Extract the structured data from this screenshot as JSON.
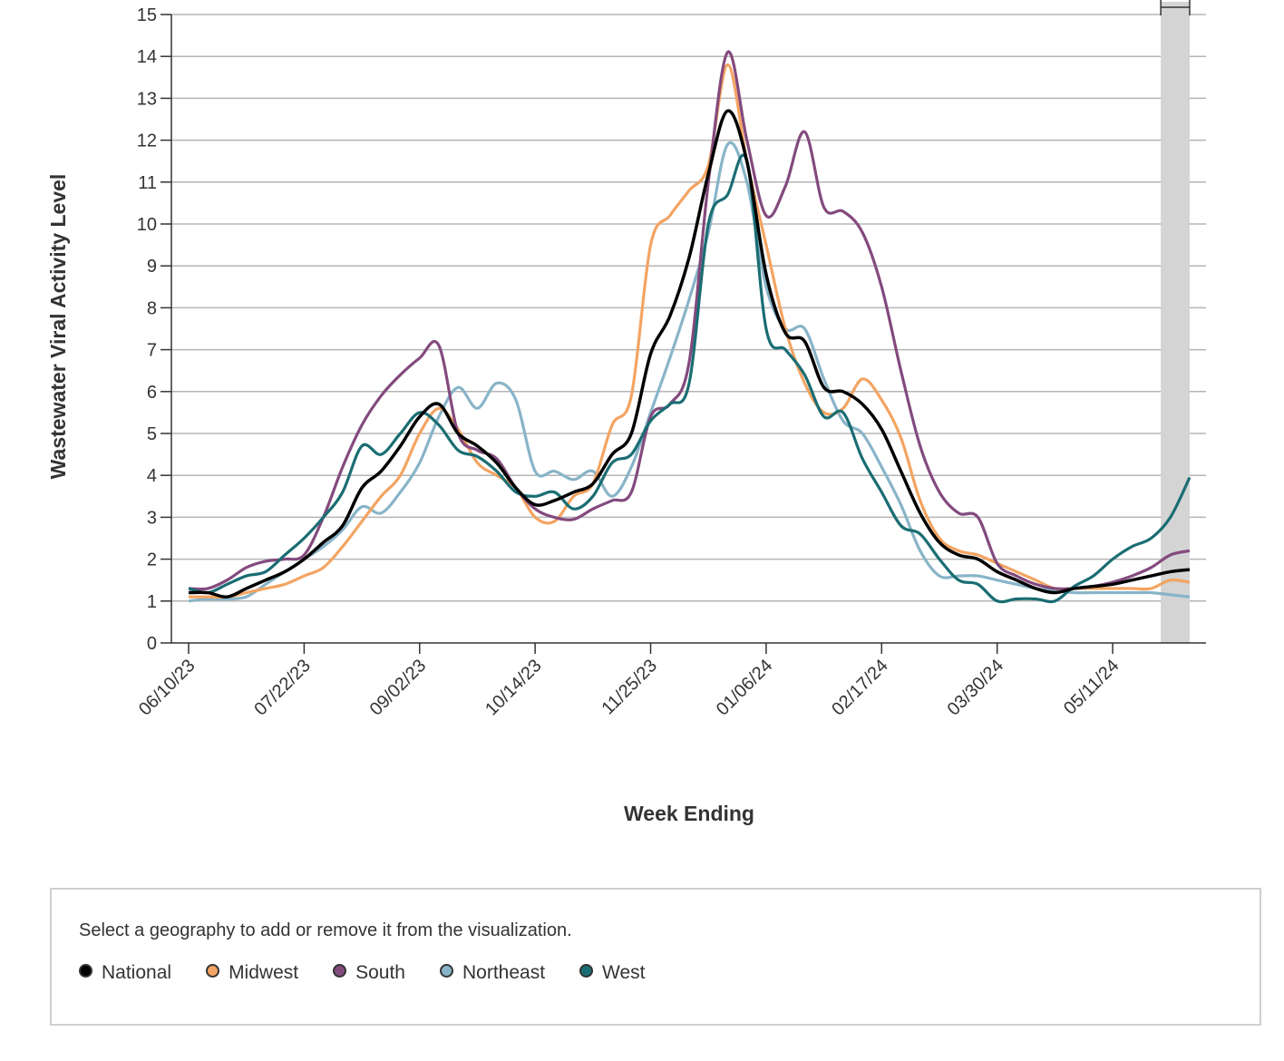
{
  "chart_data": {
    "type": "line",
    "ylabel": "Wastewater Viral Activity Level",
    "xlabel": "Week Ending",
    "ylim": [
      0,
      15
    ],
    "yticks": [
      0,
      1,
      2,
      3,
      4,
      5,
      6,
      7,
      8,
      9,
      10,
      11,
      12,
      13,
      14,
      15
    ],
    "xticks": [
      "06/10/23",
      "07/22/23",
      "09/02/23",
      "10/14/23",
      "11/25/23",
      "01/06/24",
      "02/17/24",
      "03/30/24",
      "05/11/24"
    ],
    "x_range_weeks": [
      0,
      52
    ],
    "shaded_region_weeks": [
      50.5,
      52
    ],
    "series": [
      {
        "name": "National",
        "color": "#000000",
        "points": [
          [
            0,
            1.2
          ],
          [
            1,
            1.2
          ],
          [
            2,
            1.1
          ],
          [
            3,
            1.3
          ],
          [
            4,
            1.5
          ],
          [
            5,
            1.7
          ],
          [
            6,
            2.0
          ],
          [
            7,
            2.4
          ],
          [
            8,
            2.8
          ],
          [
            9,
            3.7
          ],
          [
            10,
            4.1
          ],
          [
            11,
            4.7
          ],
          [
            12,
            5.4
          ],
          [
            13,
            5.7
          ],
          [
            14,
            5.0
          ],
          [
            15,
            4.7
          ],
          [
            16,
            4.3
          ],
          [
            17,
            3.7
          ],
          [
            18,
            3.3
          ],
          [
            19,
            3.4
          ],
          [
            20,
            3.6
          ],
          [
            21,
            3.8
          ],
          [
            22,
            4.5
          ],
          [
            23,
            5.0
          ],
          [
            24,
            6.9
          ],
          [
            25,
            7.8
          ],
          [
            26,
            9.2
          ],
          [
            27,
            11.2
          ],
          [
            28,
            12.7
          ],
          [
            29,
            11.5
          ],
          [
            30,
            8.8
          ],
          [
            31,
            7.4
          ],
          [
            32,
            7.2
          ],
          [
            33,
            6.1
          ],
          [
            34,
            6.0
          ],
          [
            35,
            5.7
          ],
          [
            36,
            5.1
          ],
          [
            37,
            4.1
          ],
          [
            38,
            3.1
          ],
          [
            39,
            2.4
          ],
          [
            40,
            2.1
          ],
          [
            41,
            2.0
          ],
          [
            42,
            1.7
          ],
          [
            43,
            1.5
          ],
          [
            44,
            1.3
          ],
          [
            45,
            1.2
          ],
          [
            46,
            1.3
          ],
          [
            47,
            1.35
          ],
          [
            48,
            1.4
          ],
          [
            49,
            1.5
          ],
          [
            50,
            1.6
          ],
          [
            51,
            1.7
          ],
          [
            52,
            1.75
          ]
        ]
      },
      {
        "name": "Midwest",
        "color": "#f3a462",
        "points": [
          [
            0,
            1.1
          ],
          [
            1,
            1.1
          ],
          [
            2,
            1.1
          ],
          [
            3,
            1.2
          ],
          [
            4,
            1.3
          ],
          [
            5,
            1.4
          ],
          [
            6,
            1.6
          ],
          [
            7,
            1.8
          ],
          [
            8,
            2.3
          ],
          [
            9,
            2.9
          ],
          [
            10,
            3.5
          ],
          [
            11,
            4.0
          ],
          [
            12,
            5.0
          ],
          [
            13,
            5.6
          ],
          [
            14,
            5.1
          ],
          [
            15,
            4.3
          ],
          [
            16,
            4.0
          ],
          [
            17,
            3.7
          ],
          [
            18,
            3.0
          ],
          [
            19,
            2.9
          ],
          [
            20,
            3.5
          ],
          [
            21,
            3.8
          ],
          [
            22,
            5.2
          ],
          [
            23,
            5.9
          ],
          [
            24,
            9.5
          ],
          [
            25,
            10.2
          ],
          [
            26,
            10.8
          ],
          [
            27,
            11.4
          ],
          [
            28,
            13.8
          ],
          [
            29,
            11.5
          ],
          [
            30,
            9.5
          ],
          [
            31,
            7.5
          ],
          [
            32,
            6.2
          ],
          [
            33,
            5.5
          ],
          [
            34,
            5.6
          ],
          [
            35,
            6.3
          ],
          [
            36,
            5.8
          ],
          [
            37,
            4.9
          ],
          [
            38,
            3.4
          ],
          [
            39,
            2.5
          ],
          [
            40,
            2.2
          ],
          [
            41,
            2.1
          ],
          [
            42,
            1.9
          ],
          [
            43,
            1.7
          ],
          [
            44,
            1.5
          ],
          [
            45,
            1.3
          ],
          [
            46,
            1.3
          ],
          [
            47,
            1.3
          ],
          [
            48,
            1.3
          ],
          [
            49,
            1.3
          ],
          [
            50,
            1.3
          ],
          [
            51,
            1.5
          ],
          [
            52,
            1.45
          ]
        ]
      },
      {
        "name": "South",
        "color": "#834a7e",
        "points": [
          [
            0,
            1.3
          ],
          [
            1,
            1.3
          ],
          [
            2,
            1.5
          ],
          [
            3,
            1.8
          ],
          [
            4,
            1.95
          ],
          [
            5,
            2.0
          ],
          [
            6,
            2.1
          ],
          [
            7,
            3.0
          ],
          [
            8,
            4.2
          ],
          [
            9,
            5.2
          ],
          [
            10,
            5.9
          ],
          [
            11,
            6.4
          ],
          [
            12,
            6.8
          ],
          [
            13,
            7.1
          ],
          [
            14,
            5.0
          ],
          [
            15,
            4.6
          ],
          [
            16,
            4.4
          ],
          [
            17,
            3.7
          ],
          [
            18,
            3.2
          ],
          [
            19,
            3.0
          ],
          [
            20,
            2.95
          ],
          [
            21,
            3.2
          ],
          [
            22,
            3.4
          ],
          [
            23,
            3.6
          ],
          [
            24,
            5.4
          ],
          [
            25,
            5.7
          ],
          [
            26,
            6.7
          ],
          [
            27,
            11.0
          ],
          [
            28,
            14.1
          ],
          [
            29,
            12.0
          ],
          [
            30,
            10.2
          ],
          [
            31,
            10.9
          ],
          [
            32,
            12.2
          ],
          [
            33,
            10.4
          ],
          [
            34,
            10.3
          ],
          [
            35,
            9.8
          ],
          [
            36,
            8.5
          ],
          [
            37,
            6.5
          ],
          [
            38,
            4.7
          ],
          [
            39,
            3.6
          ],
          [
            40,
            3.1
          ],
          [
            41,
            3.0
          ],
          [
            42,
            1.9
          ],
          [
            43,
            1.6
          ],
          [
            44,
            1.4
          ],
          [
            45,
            1.3
          ],
          [
            46,
            1.3
          ],
          [
            47,
            1.35
          ],
          [
            48,
            1.45
          ],
          [
            49,
            1.6
          ],
          [
            50,
            1.8
          ],
          [
            51,
            2.1
          ],
          [
            52,
            2.2
          ]
        ]
      },
      {
        "name": "Northeast",
        "color": "#88b4c8",
        "points": [
          [
            0,
            1.0
          ],
          [
            1,
            1.05
          ],
          [
            2,
            1.05
          ],
          [
            3,
            1.1
          ],
          [
            4,
            1.4
          ],
          [
            5,
            1.7
          ],
          [
            6,
            2.0
          ],
          [
            7,
            2.3
          ],
          [
            8,
            2.7
          ],
          [
            9,
            3.25
          ],
          [
            10,
            3.1
          ],
          [
            11,
            3.6
          ],
          [
            12,
            4.3
          ],
          [
            13,
            5.4
          ],
          [
            14,
            6.1
          ],
          [
            15,
            5.6
          ],
          [
            16,
            6.2
          ],
          [
            17,
            5.8
          ],
          [
            18,
            4.1
          ],
          [
            19,
            4.1
          ],
          [
            20,
            3.9
          ],
          [
            21,
            4.1
          ],
          [
            22,
            3.5
          ],
          [
            23,
            4.2
          ],
          [
            24,
            5.5
          ],
          [
            25,
            6.8
          ],
          [
            26,
            8.2
          ],
          [
            27,
            9.8
          ],
          [
            28,
            11.9
          ],
          [
            29,
            11.0
          ],
          [
            30,
            8.5
          ],
          [
            31,
            7.5
          ],
          [
            32,
            7.5
          ],
          [
            33,
            6.3
          ],
          [
            34,
            5.3
          ],
          [
            35,
            5.0
          ],
          [
            36,
            4.2
          ],
          [
            37,
            3.3
          ],
          [
            38,
            2.2
          ],
          [
            39,
            1.6
          ],
          [
            40,
            1.6
          ],
          [
            41,
            1.6
          ],
          [
            42,
            1.5
          ],
          [
            43,
            1.4
          ],
          [
            44,
            1.3
          ],
          [
            45,
            1.25
          ],
          [
            46,
            1.2
          ],
          [
            47,
            1.2
          ],
          [
            48,
            1.2
          ],
          [
            49,
            1.2
          ],
          [
            50,
            1.2
          ],
          [
            51,
            1.15
          ],
          [
            52,
            1.1
          ]
        ]
      },
      {
        "name": "West",
        "color": "#1a6d73",
        "points": [
          [
            0,
            1.3
          ],
          [
            1,
            1.2
          ],
          [
            2,
            1.4
          ],
          [
            3,
            1.6
          ],
          [
            4,
            1.7
          ],
          [
            5,
            2.1
          ],
          [
            6,
            2.5
          ],
          [
            7,
            3.0
          ],
          [
            8,
            3.6
          ],
          [
            9,
            4.7
          ],
          [
            10,
            4.5
          ],
          [
            11,
            5.0
          ],
          [
            12,
            5.5
          ],
          [
            13,
            5.2
          ],
          [
            14,
            4.6
          ],
          [
            15,
            4.45
          ],
          [
            16,
            4.1
          ],
          [
            17,
            3.6
          ],
          [
            18,
            3.5
          ],
          [
            19,
            3.6
          ],
          [
            20,
            3.2
          ],
          [
            21,
            3.5
          ],
          [
            22,
            4.3
          ],
          [
            23,
            4.5
          ],
          [
            24,
            5.3
          ],
          [
            25,
            5.7
          ],
          [
            26,
            6.2
          ],
          [
            27,
            10.0
          ],
          [
            28,
            10.7
          ],
          [
            29,
            11.5
          ],
          [
            30,
            7.5
          ],
          [
            31,
            7.0
          ],
          [
            32,
            6.4
          ],
          [
            33,
            5.4
          ],
          [
            34,
            5.5
          ],
          [
            35,
            4.4
          ],
          [
            36,
            3.6
          ],
          [
            37,
            2.8
          ],
          [
            38,
            2.6
          ],
          [
            39,
            2.0
          ],
          [
            40,
            1.5
          ],
          [
            41,
            1.4
          ],
          [
            42,
            1.0
          ],
          [
            43,
            1.05
          ],
          [
            44,
            1.05
          ],
          [
            45,
            1.0
          ],
          [
            46,
            1.35
          ],
          [
            47,
            1.6
          ],
          [
            48,
            2.0
          ],
          [
            49,
            2.3
          ],
          [
            50,
            2.5
          ],
          [
            51,
            3.0
          ],
          [
            52,
            3.95
          ]
        ]
      }
    ]
  },
  "legend": {
    "instruction": "Select a geography to add or remove it from the visualization.",
    "items": [
      {
        "label": "National",
        "color": "#000000"
      },
      {
        "label": "Midwest",
        "color": "#f3a462"
      },
      {
        "label": "South",
        "color": "#834a7e"
      },
      {
        "label": "Northeast",
        "color": "#88b4c8"
      },
      {
        "label": "West",
        "color": "#1a6d73"
      }
    ]
  }
}
